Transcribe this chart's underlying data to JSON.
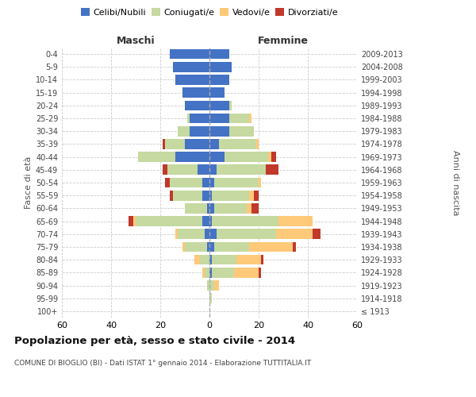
{
  "age_groups": [
    "100+",
    "95-99",
    "90-94",
    "85-89",
    "80-84",
    "75-79",
    "70-74",
    "65-69",
    "60-64",
    "55-59",
    "50-54",
    "45-49",
    "40-44",
    "35-39",
    "30-34",
    "25-29",
    "20-24",
    "15-19",
    "10-14",
    "5-9",
    "0-4"
  ],
  "birth_years": [
    "≤ 1913",
    "1914-1918",
    "1919-1923",
    "1924-1928",
    "1929-1933",
    "1934-1938",
    "1939-1943",
    "1944-1948",
    "1949-1953",
    "1954-1958",
    "1959-1963",
    "1964-1968",
    "1969-1973",
    "1974-1978",
    "1979-1983",
    "1984-1988",
    "1989-1993",
    "1994-1998",
    "1999-2003",
    "2004-2008",
    "2009-2013"
  ],
  "maschi": {
    "celibe": [
      0,
      0,
      0,
      0,
      0,
      1,
      2,
      3,
      1,
      3,
      3,
      5,
      14,
      10,
      8,
      8,
      10,
      11,
      14,
      15,
      16
    ],
    "coniugato": [
      0,
      0,
      1,
      2,
      4,
      9,
      11,
      27,
      9,
      12,
      13,
      12,
      15,
      8,
      5,
      1,
      0,
      0,
      0,
      0,
      0
    ],
    "vedovo": [
      0,
      0,
      0,
      1,
      2,
      1,
      1,
      1,
      0,
      0,
      0,
      0,
      0,
      0,
      0,
      0,
      0,
      0,
      0,
      0,
      0
    ],
    "divorziato": [
      0,
      0,
      0,
      0,
      0,
      0,
      0,
      2,
      0,
      1,
      2,
      2,
      0,
      1,
      0,
      0,
      0,
      0,
      0,
      0,
      0
    ]
  },
  "femmine": {
    "nubile": [
      0,
      0,
      0,
      1,
      1,
      2,
      3,
      1,
      2,
      1,
      2,
      3,
      6,
      4,
      8,
      8,
      8,
      6,
      8,
      9,
      8
    ],
    "coniugata": [
      0,
      1,
      2,
      9,
      10,
      14,
      24,
      27,
      13,
      15,
      18,
      20,
      18,
      15,
      10,
      8,
      1,
      0,
      0,
      0,
      0
    ],
    "vedova": [
      0,
      0,
      2,
      10,
      10,
      18,
      15,
      14,
      2,
      2,
      1,
      0,
      1,
      1,
      0,
      1,
      0,
      0,
      0,
      0,
      0
    ],
    "divorziata": [
      0,
      0,
      0,
      1,
      1,
      1,
      3,
      0,
      3,
      2,
      0,
      5,
      2,
      0,
      0,
      0,
      0,
      0,
      0,
      0,
      0
    ]
  },
  "colors": {
    "celibe": "#4472c4",
    "coniugato": "#c5d9a0",
    "vedovo": "#ffc97a",
    "divorziato": "#c0392b"
  },
  "title": "Popolazione per età, sesso e stato civile - 2014",
  "subtitle": "COMUNE DI BIOGLIO (BI) - Dati ISTAT 1° gennaio 2014 - Elaborazione TUTTITALIA.IT",
  "label_maschi": "Maschi",
  "label_femmine": "Femmine",
  "ylabel_left": "Fasce di età",
  "ylabel_right": "Anni di nascita",
  "xlim": 60,
  "background_color": "#ffffff",
  "legend_labels": [
    "Celibi/Nubili",
    "Coniugati/e",
    "Vedovi/e",
    "Divorziati/e"
  ]
}
